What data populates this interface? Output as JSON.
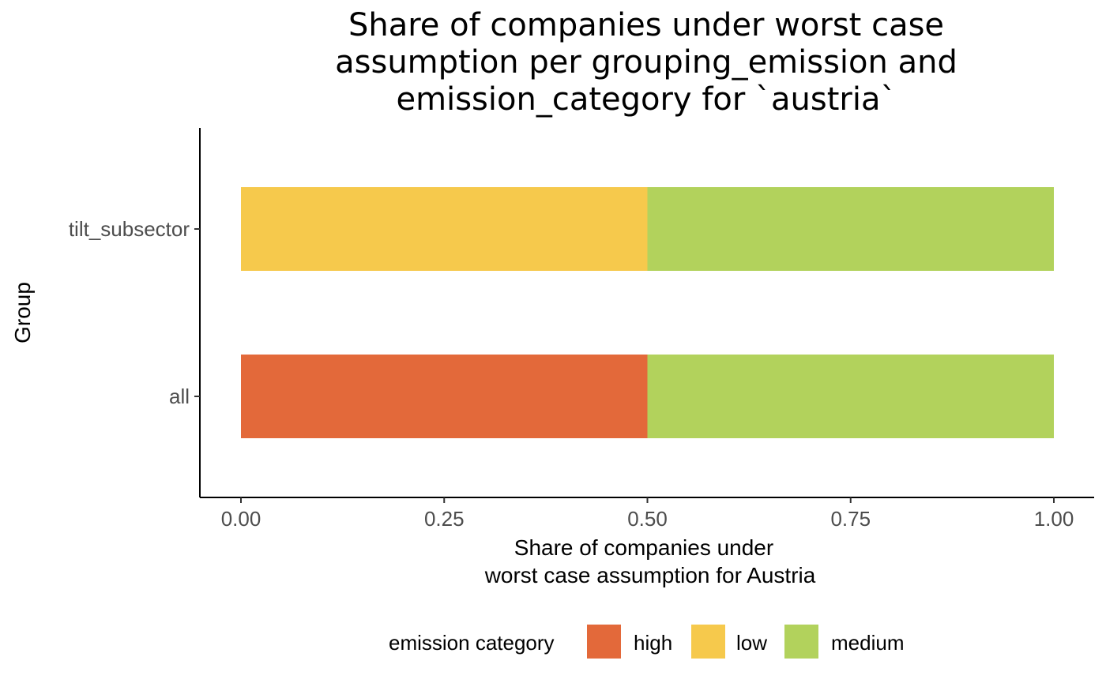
{
  "chart_data": {
    "type": "bar",
    "orientation": "horizontal",
    "stacked": true,
    "title_lines": [
      "Share of companies under worst case",
      "assumption per grouping_emission and",
      "emission_category for `austria`"
    ],
    "xlabel_lines": [
      "Share of companies under",
      "worst case assumption for Austria"
    ],
    "ylabel": "Group",
    "categories": [
      "all",
      "tilt_subsector"
    ],
    "xlim": [
      0,
      1
    ],
    "x_ticks": [
      0,
      0.25,
      0.5,
      0.75,
      1
    ],
    "x_tick_labels": [
      "0.00",
      "0.25",
      "0.50",
      "0.75",
      "1.00"
    ],
    "series": [
      {
        "name": "high",
        "color": "#E3693A",
        "values": [
          0.5,
          0
        ]
      },
      {
        "name": "low",
        "color": "#F6C94C",
        "values": [
          0,
          0.5
        ]
      },
      {
        "name": "medium",
        "color": "#B2D25C",
        "values": [
          0.5,
          0.5
        ]
      }
    ],
    "grid": false,
    "legend": {
      "title": "emission category",
      "position": "bottom"
    }
  }
}
